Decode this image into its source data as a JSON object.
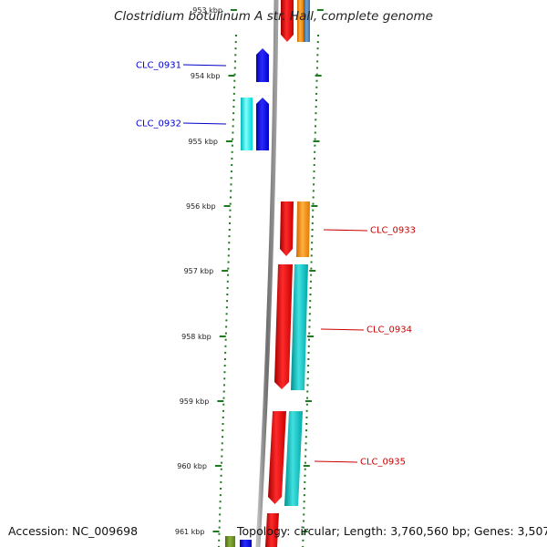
{
  "title": "Clostridium botulinum A str. Hall, complete genome",
  "footer": {
    "accession": "Accession: NC_009698",
    "summary": "Topology: circular; Length: 3,760,560 bp; Genes: 3,507"
  },
  "ticks": [
    {
      "label": "953 kbp"
    },
    {
      "label": "954 kbp"
    },
    {
      "label": "955 kbp"
    },
    {
      "label": "956 kbp"
    },
    {
      "label": "957 kbp"
    },
    {
      "label": "958 kbp"
    },
    {
      "label": "959 kbp"
    },
    {
      "label": "960 kbp"
    },
    {
      "label": "961 kbp"
    }
  ],
  "gene_labels": [
    {
      "text": "CLC_0931",
      "color": "#0000cc"
    },
    {
      "text": "CLC_0932",
      "color": "#0000cc"
    },
    {
      "text": "CLC_0933",
      "color": "#cc0000"
    },
    {
      "text": "CLC_0934",
      "color": "#cc0000"
    },
    {
      "text": "CLC_0935",
      "color": "#cc0000"
    }
  ],
  "colors": {
    "backbone": "#888888",
    "tick_green": "#1e7a1e",
    "reverse_blue": "#0000ee",
    "reverse_cyan": "#00eeee",
    "forward_red": "#ee0000",
    "forward_orange": "#ff8c00",
    "forward_teal": "#00c8c8",
    "steel_blue": "#4682b4",
    "olive": "#6b8e23"
  }
}
